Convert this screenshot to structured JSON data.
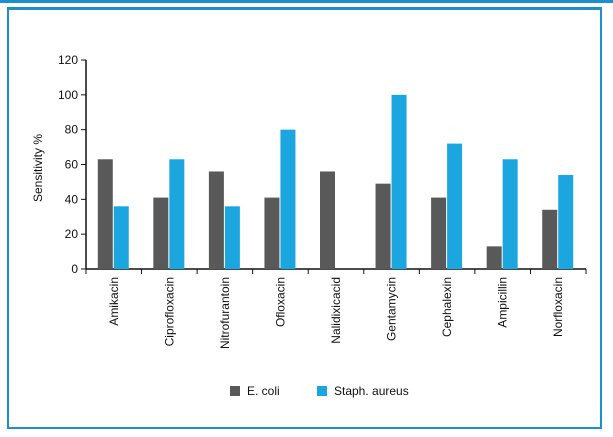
{
  "chart_data": {
    "type": "bar",
    "title": "",
    "xlabel": "",
    "ylabel": "Sensitivity %",
    "ylim": [
      0,
      120
    ],
    "yticks": [
      0,
      20,
      40,
      60,
      80,
      100,
      120
    ],
    "grid": false,
    "legend_position": "bottom",
    "categories": [
      "Amikacin",
      "Ciprofloxacin",
      "Nitrofurantoin",
      "Ofloxacin",
      "Nalidixicacid",
      "Gentamycin",
      "Cephalexin",
      "Ampicillin",
      "Norfloxacin"
    ],
    "series": [
      {
        "name": "E. coli",
        "color": "#595959",
        "values": [
          63,
          41,
          56,
          41,
          56,
          49,
          41,
          13,
          34
        ]
      },
      {
        "name": "Staph. aureus",
        "color": "#1ba6e0",
        "values": [
          36,
          63,
          36,
          80,
          null,
          100,
          72,
          63,
          54
        ]
      }
    ]
  }
}
